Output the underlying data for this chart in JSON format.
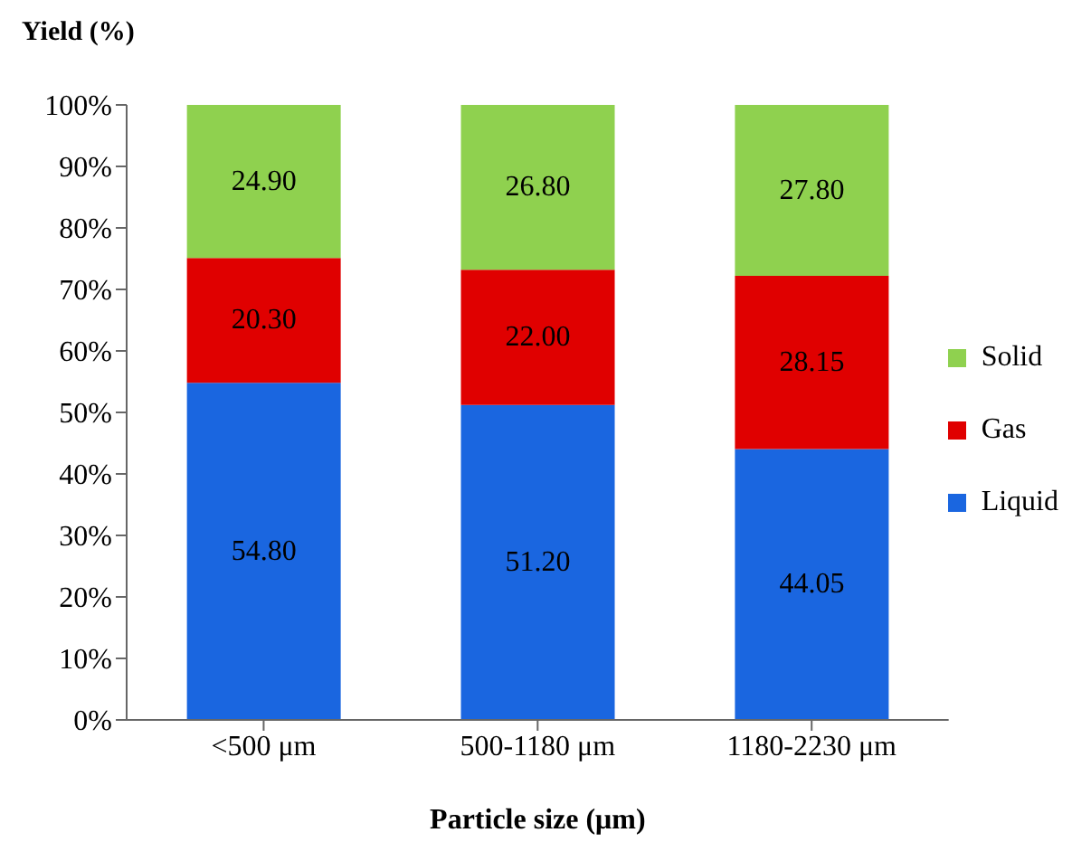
{
  "chart_data": {
    "type": "bar",
    "stacked": true,
    "ylabel": "Yield (%)",
    "xlabel": "Particle size (μm)",
    "categories": [
      "<500 μm",
      "500-1180 μm",
      "1180-2230 μm"
    ],
    "series": [
      {
        "name": "Liquid",
        "color": "#1a66e0",
        "values": [
          54.8,
          51.2,
          44.05
        ],
        "value_labels": [
          "54.80",
          "51.20",
          "44.05"
        ]
      },
      {
        "name": "Gas",
        "color": "#e00000",
        "values": [
          20.3,
          22.0,
          28.15
        ],
        "value_labels": [
          "20.30",
          "22.00",
          "28.15"
        ]
      },
      {
        "name": "Solid",
        "color": "#8fd14f",
        "values": [
          24.9,
          26.8,
          27.8
        ],
        "value_labels": [
          "24.90",
          "26.80",
          "27.80"
        ]
      }
    ],
    "ylim": [
      0,
      100
    ],
    "yticks": [
      {
        "value": 0,
        "label": "0%"
      },
      {
        "value": 10,
        "label": "10%"
      },
      {
        "value": 20,
        "label": "20%"
      },
      {
        "value": 30,
        "label": "30%"
      },
      {
        "value": 40,
        "label": "40%"
      },
      {
        "value": 50,
        "label": "50%"
      },
      {
        "value": 60,
        "label": "60%"
      },
      {
        "value": 70,
        "label": "70%"
      },
      {
        "value": 80,
        "label": "80%"
      },
      {
        "value": 90,
        "label": "90%"
      },
      {
        "value": 100,
        "label": "100%"
      }
    ],
    "grid": false,
    "legend": "right"
  }
}
